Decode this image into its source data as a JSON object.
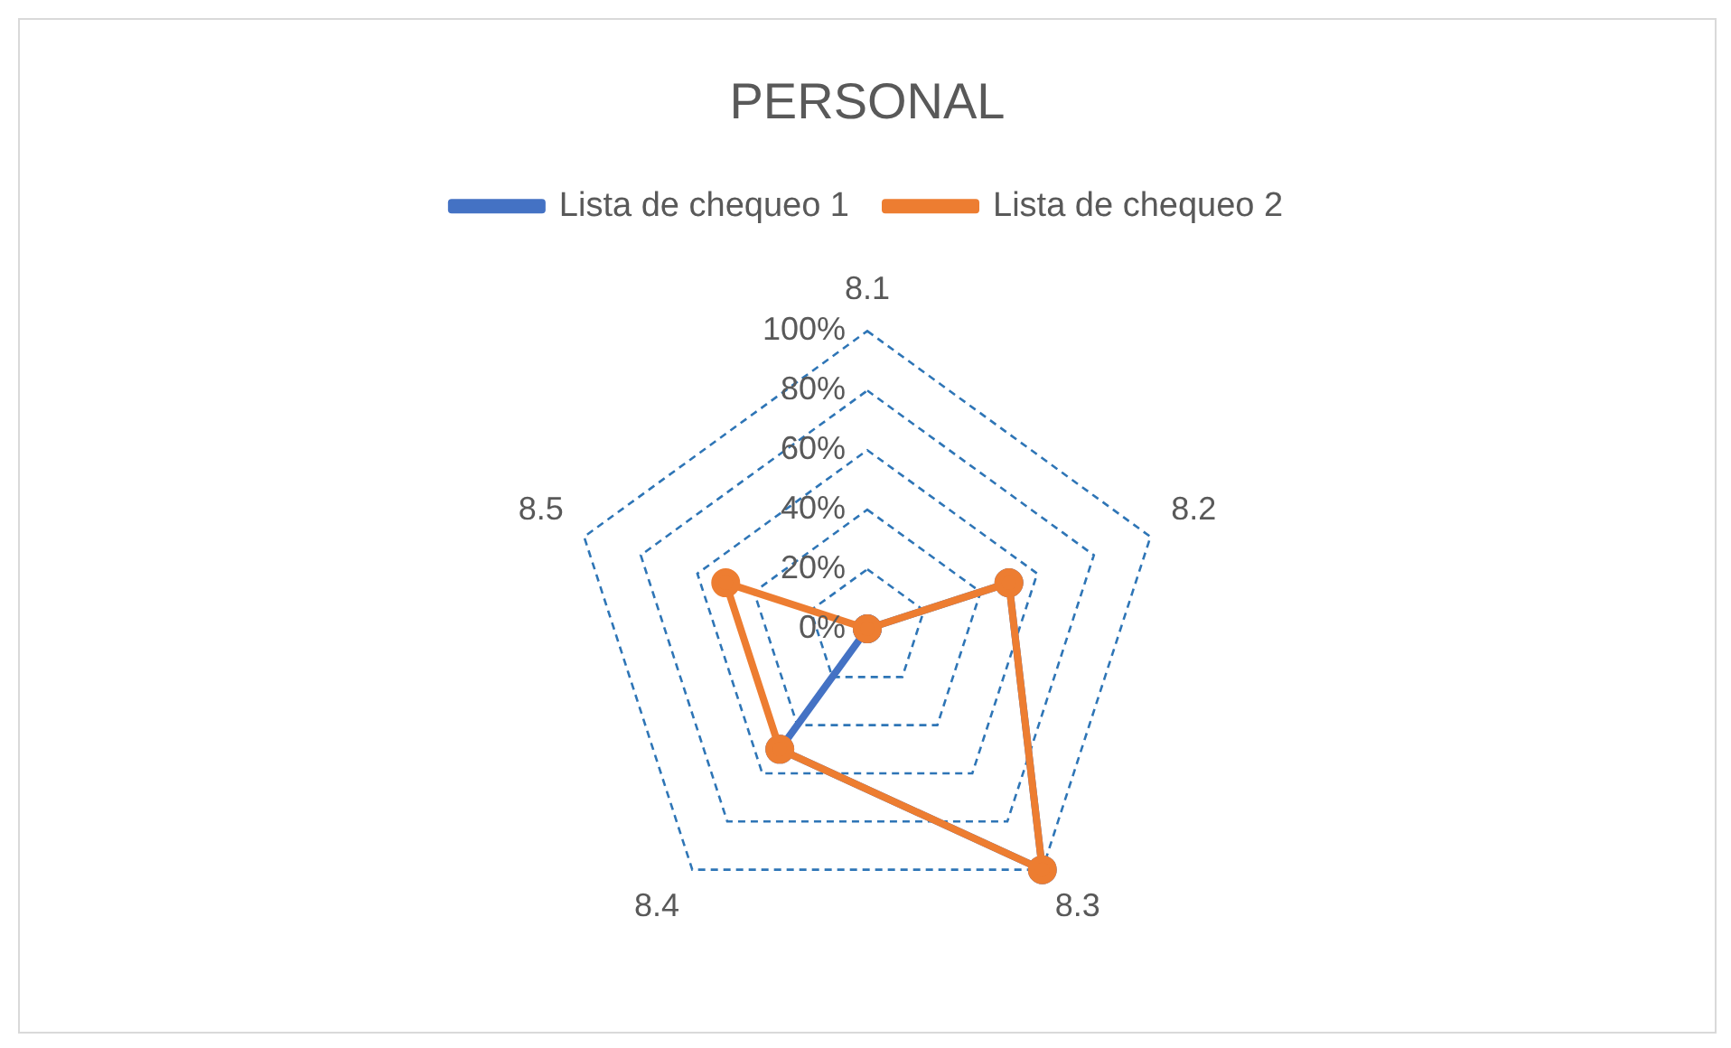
{
  "chart_data": {
    "type": "radar",
    "title": "PERSONAL",
    "categories": [
      "8.1",
      "8.2",
      "8.3",
      "8.4",
      "8.5"
    ],
    "series": [
      {
        "name": "Lista de chequeo 1",
        "color": "#4472c4",
        "values": [
          0,
          50,
          100,
          50,
          0
        ]
      },
      {
        "name": "Lista de chequeo 2",
        "color": "#ed7d31",
        "values": [
          0,
          50,
          100,
          50,
          50
        ]
      }
    ],
    "ylim": [
      0,
      100
    ],
    "yticks": [
      {
        "value": 0,
        "label": "0%"
      },
      {
        "value": 20,
        "label": "20%"
      },
      {
        "value": 40,
        "label": "40%"
      },
      {
        "value": 60,
        "label": "60%"
      },
      {
        "value": 80,
        "label": "80%"
      },
      {
        "value": 100,
        "label": "100%"
      }
    ],
    "grid": true,
    "legend": "top",
    "marker": "circle",
    "line_style": "solid"
  }
}
